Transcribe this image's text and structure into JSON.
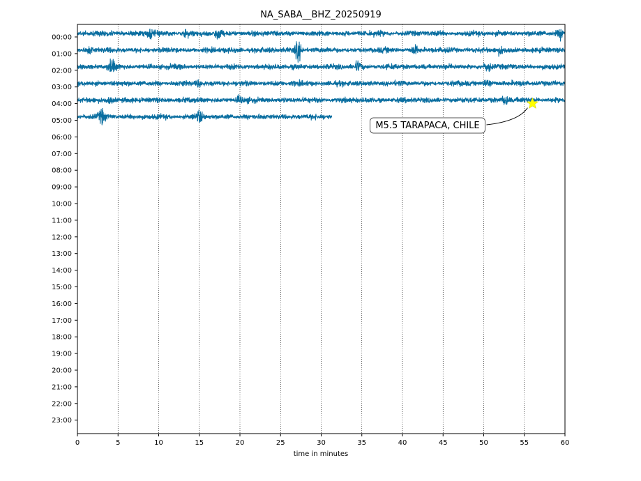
{
  "chart_data": {
    "type": "line",
    "title": "NA_SABA__BHZ_20250919",
    "xlabel": "time in minutes",
    "ylabel": "",
    "xlim": [
      0,
      60
    ],
    "x_ticks": [
      0,
      5,
      10,
      15,
      20,
      25,
      30,
      35,
      40,
      45,
      50,
      55,
      60
    ],
    "x_grid": "dotted vertical at every 5 minutes",
    "y_ticks": [
      "00:00",
      "01:00",
      "02:00",
      "03:00",
      "04:00",
      "05:00",
      "06:00",
      "07:00",
      "08:00",
      "09:00",
      "10:00",
      "11:00",
      "12:00",
      "13:00",
      "14:00",
      "15:00",
      "16:00",
      "17:00",
      "18:00",
      "19:00",
      "20:00",
      "21:00",
      "22:00",
      "23:00"
    ],
    "trace_color": "#0a6ea0",
    "series": [
      {
        "hour": "00:00",
        "start_min": 0,
        "end_min": 60,
        "events": [
          [
            9,
            1.4
          ],
          [
            17.3,
            1.8
          ],
          [
            13.5,
            1.2
          ],
          [
            59.5,
            1.5
          ]
        ]
      },
      {
        "hour": "01:00",
        "start_min": 0,
        "end_min": 60,
        "events": [
          [
            1.5,
            1.3
          ],
          [
            27.2,
            3.2
          ],
          [
            41.5,
            1.3
          ],
          [
            52,
            1.1
          ]
        ]
      },
      {
        "hour": "02:00",
        "start_min": 0,
        "end_min": 60,
        "events": [
          [
            4.2,
            2.2
          ],
          [
            34.5,
            1.4
          ],
          [
            50.5,
            1.3
          ]
        ]
      },
      {
        "hour": "03:00",
        "start_min": 0,
        "end_min": 60,
        "events": [
          [
            15,
            1.1
          ],
          [
            50.5,
            1.2
          ]
        ]
      },
      {
        "hour": "04:00",
        "start_min": 0,
        "end_min": 60,
        "events": [
          [
            52.7,
            1.6
          ],
          [
            20,
            1.0
          ],
          [
            4,
            1.0
          ]
        ]
      },
      {
        "hour": "05:00",
        "start_min": 0,
        "end_min": 31.3,
        "events": [
          [
            3,
            2.2
          ],
          [
            15,
            1.8
          ]
        ]
      }
    ],
    "annotation": {
      "text": "M5.5 TARAPACA, CHILE",
      "hour": "04:00",
      "minute": 56,
      "marker": "star",
      "marker_color": "#ffff00"
    }
  }
}
